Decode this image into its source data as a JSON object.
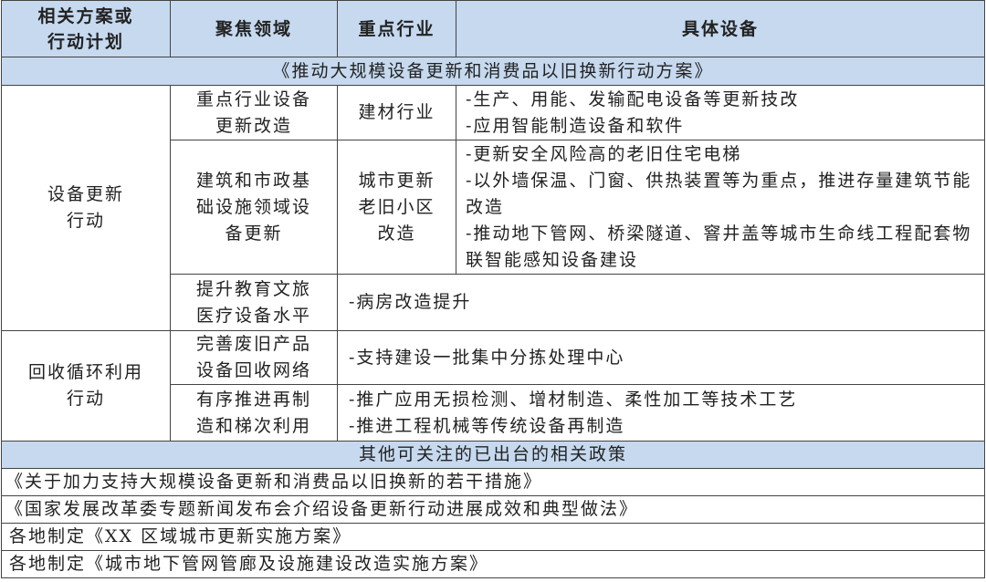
{
  "header": [
    "相关方案或行动计划",
    "聚焦领域",
    "重点行业",
    "具体设备"
  ],
  "banner1": "《推动大规模设备更新和消费品以旧换新行动方案》",
  "groups": [
    {
      "plan": "设备更新行动",
      "rows": [
        {
          "area": "重点行业设备更新改造",
          "industry": "建材行业",
          "equipment": [
            "-生产、用能、发输配电设备等更新技改",
            "-应用智能制造设备和软件"
          ]
        },
        {
          "area": "建筑和市政基础设施领域设备更新",
          "industry": "城市更新老旧小区改造",
          "equipment": [
            "-更新安全风险高的老旧住宅电梯",
            "-以外墙保温、门窗、供热装置等为重点，推进存量建筑节能改造",
            "-推动地下管网、桥梁隧道、窨井盖等城市生命线工程配套物联智能感知设备建设"
          ]
        },
        {
          "area": "提升教育文旅医疗设备水平",
          "industry": "",
          "equipment": [
            "-病房改造提升"
          ]
        }
      ]
    },
    {
      "plan": "回收循环利用行动",
      "rows": [
        {
          "area": "完善废旧产品设备回收网络",
          "industry": "",
          "equipment": [
            "-支持建设一批集中分拣处理中心"
          ]
        },
        {
          "area": "有序推进再制造和梯次利用",
          "industry": "",
          "equipment": [
            "-推广应用无损检测、增材制造、柔性加工等技术工艺",
            "-推进工程机械等传统设备再制造"
          ]
        }
      ]
    }
  ],
  "banner2": "其他可关注的已出台的相关政策",
  "policies": [
    "《关于加力支持大规模设备更新和消费品以旧换新的若干措施》",
    "《国家发展改革委专题新闻发布会介绍设备更新行动进展成效和典型做法》",
    "各地制定《XX 区域城市更新实施方案》",
    "各地制定《城市地下管网管廊及设施建设改造实施方案》"
  ],
  "colors": {
    "header_bg": "#c6d9ef",
    "border": "#444444"
  }
}
